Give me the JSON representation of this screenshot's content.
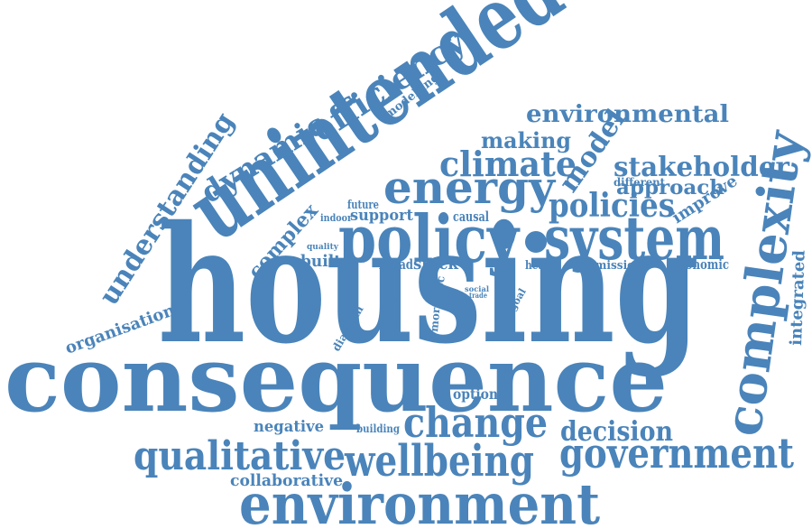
{
  "word_color": "#4a84ba",
  "words": [
    "housing",
    "consequence",
    "unintended",
    "policy",
    "system",
    "environment",
    "energy",
    "complexity",
    "change",
    "government",
    "wellbeing",
    "qualitative",
    "climate",
    "policies",
    "decision",
    "stakeholder",
    "efficiency",
    "dynamic",
    "environmental",
    "understanding",
    "model",
    "making",
    "approach",
    "integrated",
    "complex",
    "improve",
    "organisation",
    "collaborative",
    "negative",
    "built",
    "stock",
    "support",
    "causal",
    "broad",
    "economic",
    "emission",
    "health",
    "option",
    "range",
    "modelling",
    "different",
    "future",
    "indoor",
    "diagram",
    "quality",
    "building",
    "impact",
    "method",
    "goal",
    "social",
    "trade",
    "more",
    "proc"
  ]
}
